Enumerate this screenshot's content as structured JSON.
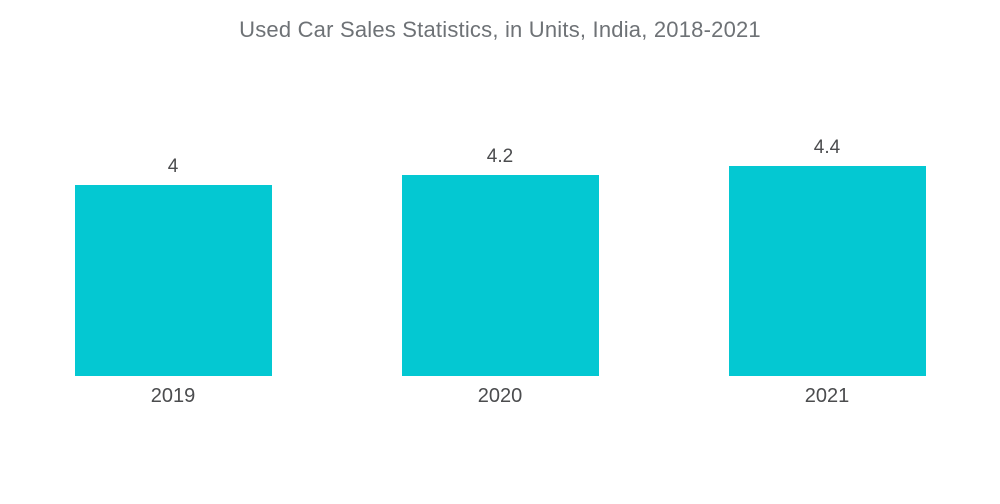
{
  "title": "Used Car Sales Statistics, in Units, India, 2018-2021",
  "colors": {
    "background": "#ffffff",
    "bar": "#04c8d2",
    "title_text": "#6e7276",
    "label_text": "#4b4c4e"
  },
  "chart_data": {
    "type": "bar",
    "title": "Used Car Sales Statistics, in Units, India, 2018-2021",
    "categories": [
      "2019",
      "2020",
      "2021"
    ],
    "values": [
      4,
      4.2,
      4.4
    ],
    "data_labels": [
      "4",
      "4.2",
      "4.4"
    ],
    "xlabel": "",
    "ylabel": "",
    "ylim": [
      0,
      4.4
    ],
    "grid": false,
    "legend": false,
    "axes_visible": false,
    "bar_color": "#04c8d2",
    "layout": "single-series, value labels above bars, category labels below bars, no axis lines"
  }
}
